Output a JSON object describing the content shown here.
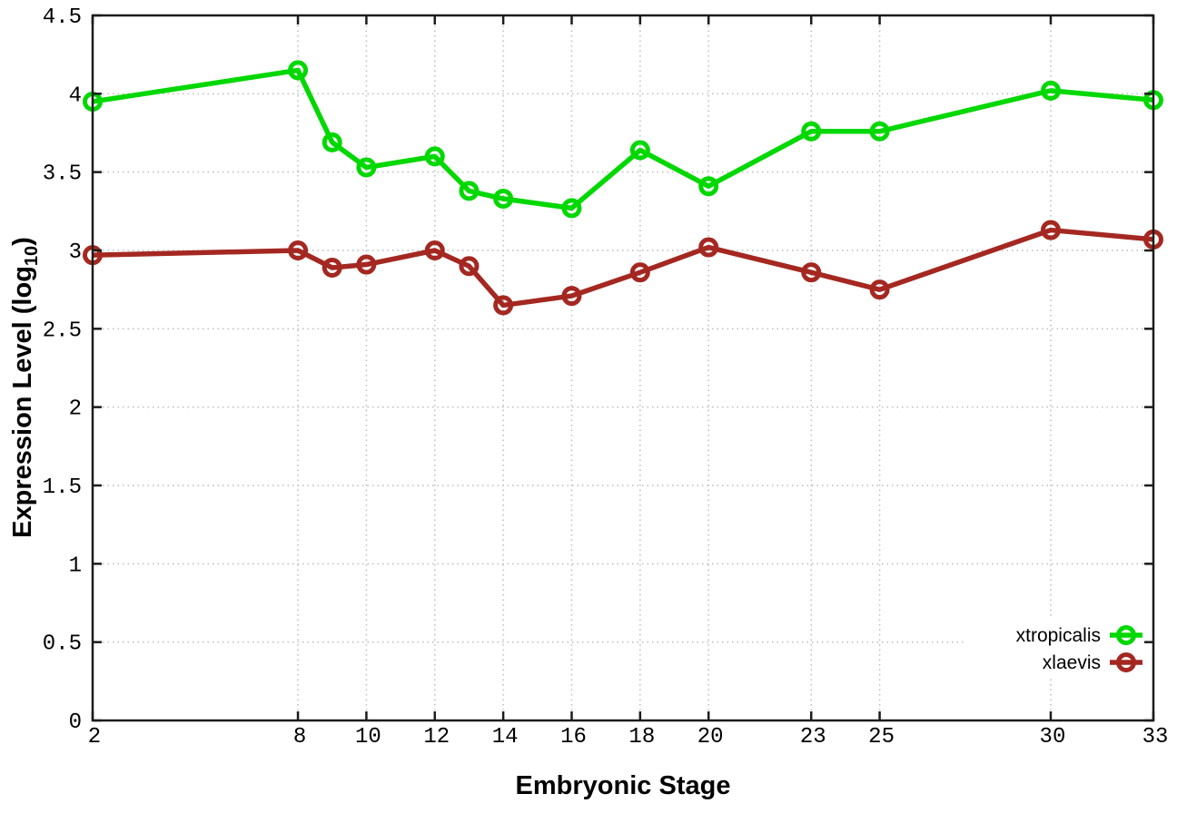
{
  "chart_data": {
    "type": "line",
    "title": "",
    "xlabel": "Embryonic Stage",
    "ylabel": "Expression Level (log10)",
    "ylabel_prefix": "Expression Level (log",
    "ylabel_sub": "10",
    "ylabel_suffix": ")",
    "xlim": [
      2,
      33
    ],
    "ylim": [
      0,
      4.5
    ],
    "x_ticks": [
      2,
      8,
      10,
      12,
      14,
      16,
      18,
      20,
      23,
      25,
      30,
      33
    ],
    "y_ticks": [
      0,
      0.5,
      1,
      1.5,
      2,
      2.5,
      3,
      3.5,
      4,
      4.5
    ],
    "grid": true,
    "legend_position": "inside-bottom-right",
    "x": [
      2,
      8,
      9,
      10,
      12,
      13,
      14,
      16,
      18,
      20,
      23,
      25,
      30,
      33
    ],
    "series": [
      {
        "name": "xtropicalis",
        "color": "#00d800",
        "values": [
          3.95,
          4.15,
          3.69,
          3.53,
          3.6,
          3.38,
          3.33,
          3.27,
          3.64,
          3.41,
          3.76,
          3.76,
          4.02,
          3.96
        ]
      },
      {
        "name": "xlaevis",
        "color": "#a42821",
        "values": [
          2.97,
          3.0,
          2.89,
          2.91,
          3.0,
          2.9,
          2.65,
          2.71,
          2.86,
          3.02,
          2.86,
          2.75,
          3.13,
          3.07
        ]
      }
    ]
  },
  "colors": {
    "background": "#ffffff",
    "axis": "#1c1c1c",
    "grid": "#bcbcbc",
    "text": "#000000",
    "legend_mask": "#ffffff"
  }
}
